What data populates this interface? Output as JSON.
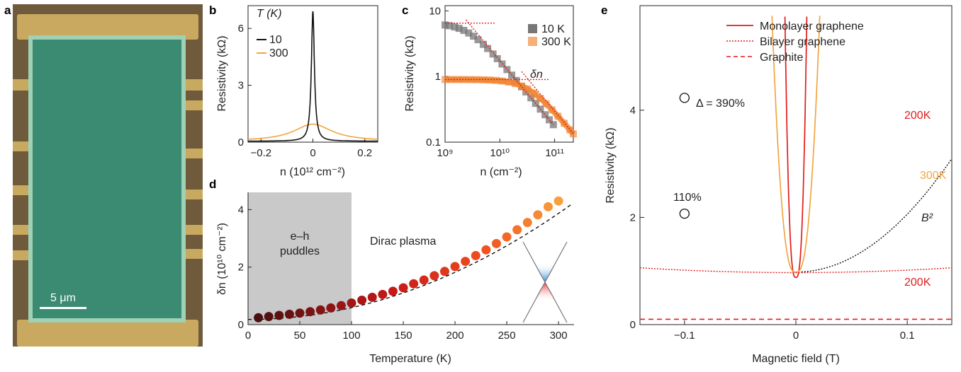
{
  "panel_labels": [
    "a",
    "b",
    "c",
    "d",
    "e"
  ],
  "panel_a": {
    "scale_bar_label": "5 μm"
  },
  "chart_data": [
    {
      "panel": "b",
      "type": "line",
      "xlabel": "n (10¹² cm⁻²)",
      "ylabel": "Resistivity (kΩ)",
      "xlim": [
        -0.25,
        0.25
      ],
      "ylim": [
        0,
        7.2
      ],
      "xticks": [
        -0.2,
        0,
        0.2
      ],
      "xtick_labels": [
        "−0.2",
        "0",
        "0.2"
      ],
      "yticks": [
        0,
        3,
        6
      ],
      "legend_title": "T (K)",
      "series": [
        {
          "name": "10",
          "color": "#111111",
          "gamma": 0.007,
          "peak": 6.9,
          "floor": 0.05
        },
        {
          "name": "300",
          "color": "#f2a540",
          "gamma": 0.09,
          "peak": 0.95,
          "floor": 0.05
        }
      ]
    },
    {
      "panel": "c",
      "type": "scatter",
      "xscale": "log",
      "yscale": "log",
      "xlabel": "n (cm⁻²)",
      "ylabel": "Resistivity (kΩ)",
      "xlim": [
        1000000000.0,
        220000000000.0
      ],
      "ylim": [
        0.1,
        12
      ],
      "xticks": [
        1000000000.0,
        10000000000.0,
        100000000000.0
      ],
      "xtick_labels": [
        "10⁹",
        "10¹⁰",
        "10¹¹"
      ],
      "yticks": [
        0.1,
        1,
        10
      ],
      "ytick_labels": [
        "0.1",
        "1",
        "10"
      ],
      "annotation": "δn",
      "series": [
        {
          "name": "10 K",
          "color": "#777777",
          "rho0": 6.5,
          "n0": 2700000000.0,
          "nmax": 95000000000.0,
          "x": [
            1000000000.0,
            1200000000.0,
            1500000000.0,
            1800000000.0,
            2200000000.0,
            2700000000.0,
            3300000000.0,
            4000000000.0,
            5000000000.0,
            6000000000.0,
            7500000000.0,
            9000000000.0,
            11000000000.0,
            13500000000.0,
            16500000000.0,
            20000000000.0,
            25000000000.0,
            30000000000.0,
            37000000000.0,
            45000000000.0,
            55000000000.0,
            67000000000.0,
            80000000000.0,
            95000000000.0
          ]
        },
        {
          "name": "300 K",
          "color": "#f07e2a",
          "rho0": 0.9,
          "n0": 33000000000.0,
          "nmax": 220000000000.0,
          "x": [
            1000000000.0,
            1300000000.0,
            1700000000.0,
            2200000000.0,
            2900000000.0,
            3800000000.0,
            5000000000.0,
            6500000000.0,
            8500000000.0,
            11000000000.0,
            14500000000.0,
            19000000000.0,
            25000000000.0,
            32000000000.0,
            42000000000.0,
            55000000000.0,
            70000000000.0,
            90000000000.0,
            115000000000.0,
            150000000000.0,
            190000000000.0,
            220000000000.0
          ]
        }
      ]
    },
    {
      "panel": "d",
      "type": "scatter",
      "xlabel": "Temperature (K)",
      "ylabel": "δn (10¹⁰ cm⁻²)",
      "xlim": [
        0,
        315
      ],
      "ylim": [
        0,
        4.6
      ],
      "xticks": [
        0,
        50,
        100,
        150,
        200,
        250,
        300
      ],
      "yticks": [
        0,
        2,
        4
      ],
      "shaded_region": {
        "x": [
          0,
          100
        ],
        "label_line1": "e–h",
        "label_line2": "puddles"
      },
      "region_label": "Dirac plasma",
      "x": [
        10,
        20,
        30,
        40,
        50,
        60,
        70,
        80,
        90,
        100,
        110,
        120,
        130,
        140,
        150,
        160,
        170,
        180,
        190,
        200,
        210,
        220,
        230,
        240,
        250,
        260,
        270,
        280,
        290,
        300
      ],
      "y": [
        0.24,
        0.28,
        0.32,
        0.36,
        0.4,
        0.45,
        0.51,
        0.58,
        0.66,
        0.75,
        0.85,
        0.95,
        1.05,
        1.16,
        1.28,
        1.42,
        1.55,
        1.7,
        1.85,
        2.02,
        2.2,
        2.4,
        2.6,
        2.82,
        3.05,
        3.3,
        3.55,
        3.82,
        4.1,
        4.3
      ],
      "fit_line": {
        "x0": 0,
        "x1": 312,
        "c0": 0.18,
        "c2": 4.1e-05
      }
    },
    {
      "panel": "e",
      "type": "line",
      "xlabel": "Magnetic field (T)",
      "ylabel": "Resistivity (kΩ)",
      "xlim": [
        -0.14,
        0.14
      ],
      "ylim": [
        0,
        5.95
      ],
      "xticks": [
        -0.1,
        0,
        0.1
      ],
      "xtick_labels": [
        "−0.1",
        "0",
        "0.1"
      ],
      "yticks": [
        0,
        2,
        4
      ],
      "legend": [
        "Monolayer graphene",
        "Bilayer graphene",
        "Graphite"
      ],
      "series": [
        {
          "name": "Monolayer graphene",
          "temp": "200K",
          "color": "#e31b1b",
          "style": "solid",
          "rho0": 0.88,
          "width": 0.0185,
          "mu2": 140000
        },
        {
          "name": "Monolayer graphene",
          "temp": "300K",
          "color": "#f2a540",
          "style": "solid",
          "rho0": 0.98,
          "width": 0.014,
          "mu2": 13500
        },
        {
          "name": "Bilayer graphene",
          "temp": "200K",
          "color": "#e31b1b",
          "style": "dotted",
          "rho0": 0.97,
          "a2": 4.6
        },
        {
          "name": "Graphite",
          "color": "#e31b1b",
          "style": "dashed",
          "value": 0.1
        },
        {
          "name": "B²",
          "color": "#111111",
          "style": "dotted",
          "rho0": 0.98,
          "a2": 108,
          "x0": 0.005,
          "x1": 0.14
        }
      ],
      "annotations": [
        "Δ = 390%",
        "110%",
        "200K",
        "300K",
        "200K",
        "B²"
      ],
      "markers": [
        {
          "x": -0.1,
          "y": 4.23
        },
        {
          "x": -0.1,
          "y": 2.07
        }
      ]
    }
  ]
}
